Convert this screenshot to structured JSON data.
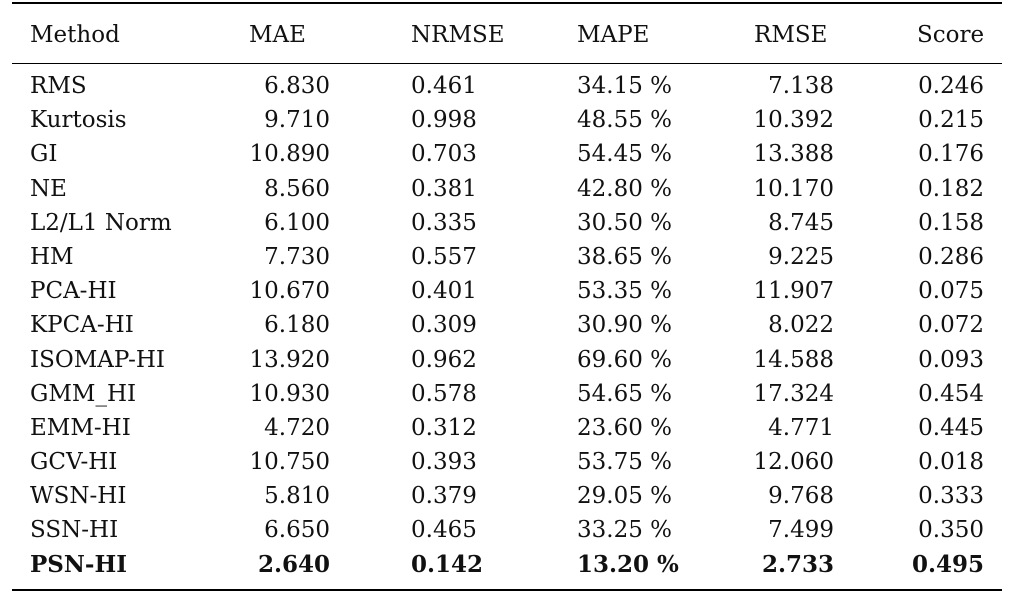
{
  "table": {
    "headers": [
      "Method",
      "MAE",
      "NRMSE",
      "MAPE",
      "RMSE",
      "Score"
    ],
    "rows": [
      {
        "method": "RMS",
        "mae": "6.830",
        "nrmse": "0.461",
        "mape": "34.15 %",
        "rmse": "7.138",
        "score": "0.246"
      },
      {
        "method": "Kurtosis",
        "mae": "9.710",
        "nrmse": "0.998",
        "mape": "48.55 %",
        "rmse": "10.392",
        "score": "0.215"
      },
      {
        "method": "GI",
        "mae": "10.890",
        "nrmse": "0.703",
        "mape": "54.45 %",
        "rmse": "13.388",
        "score": "0.176"
      },
      {
        "method": "NE",
        "mae": "8.560",
        "nrmse": "0.381",
        "mape": "42.80 %",
        "rmse": "10.170",
        "score": "0.182"
      },
      {
        "method": "L2/L1 Norm",
        "mae": "6.100",
        "nrmse": "0.335",
        "mape": "30.50 %",
        "rmse": "8.745",
        "score": "0.158"
      },
      {
        "method": "HM",
        "mae": "7.730",
        "nrmse": "0.557",
        "mape": "38.65 %",
        "rmse": "9.225",
        "score": "0.286"
      },
      {
        "method": "PCA-HI",
        "mae": "10.670",
        "nrmse": "0.401",
        "mape": "53.35 %",
        "rmse": "11.907",
        "score": "0.075"
      },
      {
        "method": "KPCA-HI",
        "mae": "6.180",
        "nrmse": "0.309",
        "mape": "30.90 %",
        "rmse": "8.022",
        "score": "0.072"
      },
      {
        "method": "ISOMAP-HI",
        "mae": "13.920",
        "nrmse": "0.962",
        "mape": "69.60 %",
        "rmse": "14.588",
        "score": "0.093"
      },
      {
        "method": "GMM_HI",
        "mae": "10.930",
        "nrmse": "0.578",
        "mape": "54.65 %",
        "rmse": "17.324",
        "score": "0.454"
      },
      {
        "method": "EMM-HI",
        "mae": "4.720",
        "nrmse": "0.312",
        "mape": "23.60 %",
        "rmse": "4.771",
        "score": "0.445"
      },
      {
        "method": "GCV-HI",
        "mae": "10.750",
        "nrmse": "0.393",
        "mape": "53.75 %",
        "rmse": "12.060",
        "score": "0.018"
      },
      {
        "method": "WSN-HI",
        "mae": "5.810",
        "nrmse": "0.379",
        "mape": "29.05 %",
        "rmse": "9.768",
        "score": "0.333"
      },
      {
        "method": "SSN-HI",
        "mae": "6.650",
        "nrmse": "0.465",
        "mape": "33.25 %",
        "rmse": "7.499",
        "score": "0.350"
      },
      {
        "method": "PSN-HI",
        "mae": "2.640",
        "nrmse": "0.142",
        "mape": "13.20 %",
        "rmse": "2.733",
        "score": "0.495",
        "bold": true
      }
    ]
  }
}
